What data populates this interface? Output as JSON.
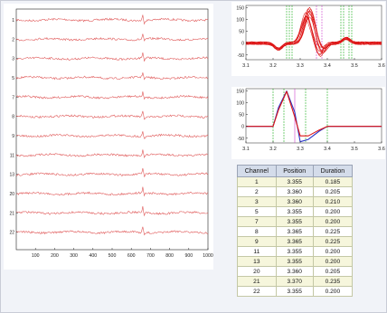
{
  "colors": {
    "trace": "#e05a5a",
    "avg_line": "#2b35c8",
    "red_line": "#dd1414",
    "green_marker": "#20b020",
    "magenta_marker": "#cc44cc",
    "axis": "#222222"
  },
  "chart_data": [
    {
      "type": "line",
      "description_role": "main-multichannel-traces",
      "xlim": [
        0,
        1000
      ],
      "xticks": [
        100,
        200,
        300,
        400,
        500,
        600,
        700,
        800,
        900,
        1000
      ],
      "channels": [
        "1",
        "2",
        "3",
        "5",
        "7",
        "8",
        "9",
        "11",
        "13",
        "20",
        "21",
        "22"
      ],
      "spike_position": 660
    },
    {
      "type": "line",
      "description_role": "overlaid-waveforms",
      "xlim": [
        3.1,
        3.6
      ],
      "ylim": [
        -70,
        160
      ],
      "xticks": [
        "3.1",
        "3.2",
        "3.3",
        "3.4",
        "3.5",
        "3.6"
      ],
      "yticks": [
        "150",
        "100",
        "50",
        "0",
        "-50"
      ],
      "green_markers": [
        3.25,
        3.26,
        3.27,
        3.45,
        3.46,
        3.48,
        3.49
      ],
      "magenta_markers": [
        3.36,
        3.38
      ]
    },
    {
      "type": "line",
      "description_role": "average-waveform",
      "xlim": [
        3.1,
        3.6
      ],
      "ylim": [
        -70,
        160
      ],
      "xticks": [
        "3.1",
        "3.2",
        "3.3",
        "3.4",
        "3.5",
        "3.6"
      ],
      "yticks": [
        "150",
        "100",
        "50",
        "0",
        "-50"
      ],
      "green_markers": [
        3.2,
        3.24,
        3.32,
        3.4
      ],
      "magenta_markers": [
        3.28
      ],
      "series": [
        {
          "x": [
            3.1,
            3.2,
            3.22,
            3.25,
            3.28,
            3.3,
            3.33,
            3.37,
            3.4,
            3.6
          ],
          "y": [
            0,
            0,
            80,
            150,
            60,
            -65,
            -55,
            -20,
            0,
            0
          ]
        },
        {
          "x": [
            3.1,
            3.2,
            3.22,
            3.25,
            3.28,
            3.3,
            3.33,
            3.37,
            3.4,
            3.6
          ],
          "y": [
            0,
            0,
            70,
            148,
            40,
            -40,
            -40,
            -15,
            0,
            0
          ]
        }
      ]
    },
    {
      "type": "table",
      "columns": [
        "Channel",
        "Position",
        "Duration"
      ],
      "rows": [
        [
          "1",
          "3.355",
          "0.185"
        ],
        [
          "2",
          "3.360",
          "0.205"
        ],
        [
          "3",
          "3.360",
          "0.210"
        ],
        [
          "5",
          "3.355",
          "0.200"
        ],
        [
          "7",
          "3.355",
          "0.200"
        ],
        [
          "8",
          "3.365",
          "0.225"
        ],
        [
          "9",
          "3.365",
          "0.225"
        ],
        [
          "11",
          "3.355",
          "0.200"
        ],
        [
          "13",
          "3.355",
          "0.200"
        ],
        [
          "20",
          "3.360",
          "0.205"
        ],
        [
          "21",
          "3.370",
          "0.235"
        ],
        [
          "22",
          "3.355",
          "0.200"
        ]
      ]
    }
  ]
}
